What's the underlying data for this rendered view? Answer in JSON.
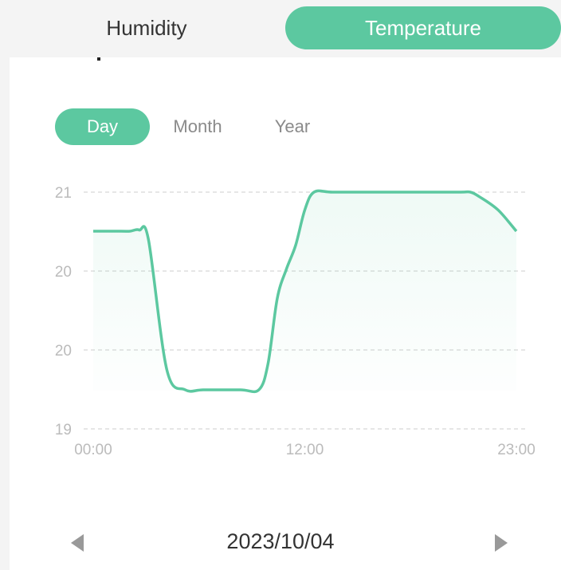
{
  "header_tabs": [
    {
      "label": "Humidity",
      "active": false
    },
    {
      "label": "Temperature",
      "active": true
    }
  ],
  "range_tabs": [
    {
      "label": "Day",
      "active": true
    },
    {
      "label": "Month",
      "active": false
    },
    {
      "label": "Year",
      "active": false
    }
  ],
  "colors": {
    "accent": "#5cc8a0",
    "grid": "#dddddd",
    "tick_text": "#bbbbbb"
  },
  "chart_data": {
    "type": "area",
    "x_tick_labels": [
      "00:00",
      "12:00",
      "23:00"
    ],
    "y_tick_labels": [
      "19",
      "20",
      "20",
      "21"
    ],
    "x": [
      0,
      1.5,
      2,
      2.5,
      3,
      4,
      5,
      6,
      8,
      9,
      9.5,
      10,
      10.5,
      11,
      11.5,
      12,
      13,
      15,
      18,
      20,
      20.5,
      21,
      22,
      23
    ],
    "y": [
      20.67,
      20.67,
      20.67,
      20.68,
      20.6,
      19.5,
      19.33,
      19.33,
      19.33,
      19.33,
      19.55,
      20.1,
      20.35,
      20.55,
      20.85,
      21.0,
      21.0,
      21.0,
      21.0,
      21.0,
      21.0,
      20.96,
      20.85,
      20.67
    ],
    "ylim": [
      19.0,
      21.0
    ],
    "xlim": [
      0,
      23
    ],
    "grid": true
  },
  "footer": {
    "date": "2023/10/04",
    "prev_icon": "triangle-left-icon",
    "next_icon": "triangle-right-icon"
  }
}
